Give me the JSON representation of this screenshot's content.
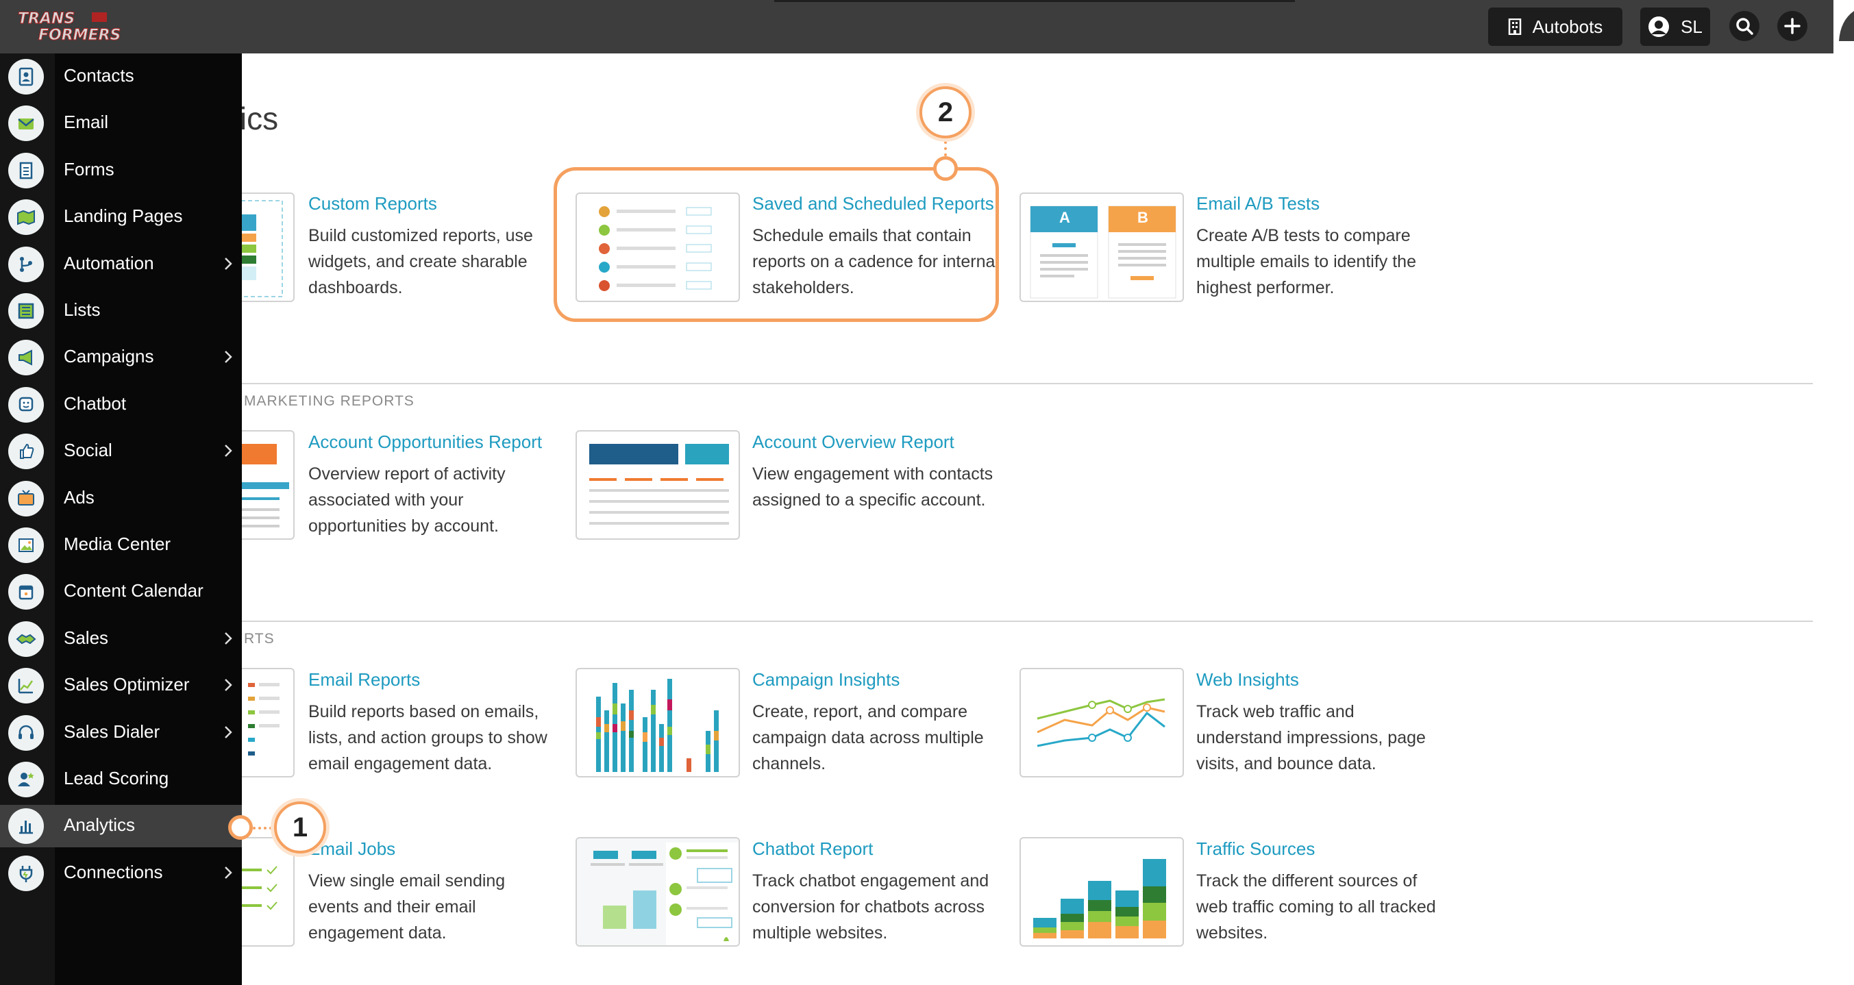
{
  "header": {
    "logo_text": "TRANSFORMERS",
    "org_button": "Autobots",
    "user_initials": "SL"
  },
  "page": {
    "title": "Analytics",
    "sections": [
      {
        "label": "",
        "cards": [
          {
            "title": "Custom Reports",
            "desc": "Build customized reports, use widgets, and create sharable dashboards."
          },
          {
            "title": "Saved and Scheduled Reports",
            "desc": "Schedule emails that contain reports on a cadence for internal stakeholders."
          },
          {
            "title": "Email A/B Tests",
            "desc": "Create A/B tests to compare multiple emails to identify the highest performer."
          }
        ]
      },
      {
        "label": "MARKETING REPORTS",
        "cards": [
          {
            "title": "Account Opportunities Report",
            "desc": "Overview report of activity associated with your opportunities by account."
          },
          {
            "title": "Account Overview Report",
            "desc": "View engagement with contacts assigned to a specific account."
          }
        ]
      },
      {
        "label": "RTS",
        "cards": [
          {
            "title": "Email Reports",
            "desc": "Build reports based on emails, lists, and action groups to show email engagement data."
          },
          {
            "title": "Campaign Insights",
            "desc": "Create, report, and compare campaign data across multiple channels."
          },
          {
            "title": "Web Insights",
            "desc": "Track web traffic and understand impressions, page visits, and bounce data."
          },
          {
            "title": "Email Jobs",
            "desc": "View single email sending events and their email engagement data."
          },
          {
            "title": "Chatbot Report",
            "desc": "Track chatbot engagement and conversion for chatbots across multiple websites."
          },
          {
            "title": "Traffic Sources",
            "desc": "Track the different sources of web traffic coming to all tracked websites."
          }
        ]
      }
    ],
    "ab_labels": [
      "A",
      "B"
    ]
  },
  "sidebar": {
    "items": [
      {
        "label": "Contacts",
        "icon": "contacts-icon",
        "submenu": false
      },
      {
        "label": "Email",
        "icon": "email-icon",
        "submenu": false
      },
      {
        "label": "Forms",
        "icon": "forms-icon",
        "submenu": false
      },
      {
        "label": "Landing Pages",
        "icon": "landing-pages-icon",
        "submenu": false
      },
      {
        "label": "Automation",
        "icon": "automation-icon",
        "submenu": true
      },
      {
        "label": "Lists",
        "icon": "lists-icon",
        "submenu": false
      },
      {
        "label": "Campaigns",
        "icon": "megaphone-icon",
        "submenu": true
      },
      {
        "label": "Chatbot",
        "icon": "chatbot-icon",
        "submenu": false
      },
      {
        "label": "Social",
        "icon": "thumbs-up-icon",
        "submenu": true
      },
      {
        "label": "Ads",
        "icon": "ads-icon",
        "submenu": false
      },
      {
        "label": "Media Center",
        "icon": "media-icon",
        "submenu": false
      },
      {
        "label": "Content Calendar",
        "icon": "calendar-icon",
        "submenu": false
      },
      {
        "label": "Sales",
        "icon": "handshake-icon",
        "submenu": true
      },
      {
        "label": "Sales Optimizer",
        "icon": "trend-chart-icon",
        "submenu": true
      },
      {
        "label": "Sales Dialer",
        "icon": "headset-icon",
        "submenu": true
      },
      {
        "label": "Lead Scoring",
        "icon": "lead-scoring-icon",
        "submenu": false
      },
      {
        "label": "Analytics",
        "icon": "bar-chart-icon",
        "submenu": false,
        "active": true
      },
      {
        "label": "Connections",
        "icon": "plug-icon",
        "submenu": true
      }
    ]
  },
  "callouts": [
    "1",
    "2"
  ],
  "colors": {
    "accent": "#1e9bc0",
    "callout": "#f5a05f",
    "topbar": "#3d3d3d",
    "sidebar": "#080808"
  }
}
